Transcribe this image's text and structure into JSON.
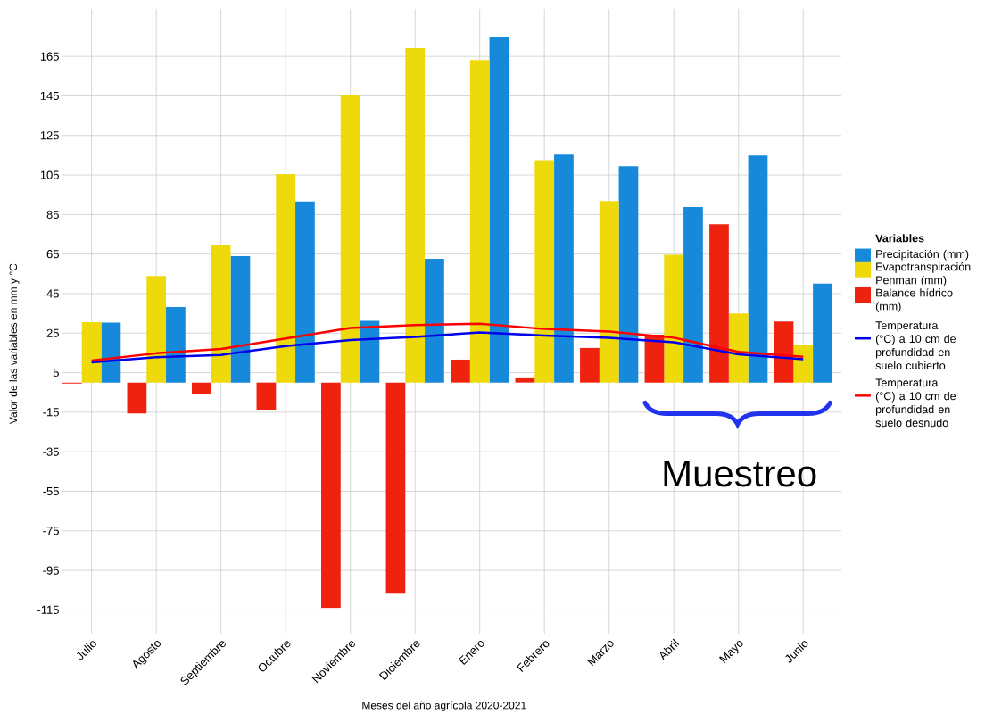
{
  "chart_data": {
    "type": "bar",
    "xlabel": "Meses del año agrícola 2020-2021",
    "ylabel": "Valor de las variables en mm y °C",
    "legend_title": "Variables",
    "legend": "right",
    "grid": true,
    "categories": [
      "Julio",
      "Agosto",
      "Septiembre",
      "Octubre",
      "Noviembre",
      "Diciembre",
      "Enero",
      "Febrero",
      "Marzo",
      "Abril",
      "Mayo",
      "Junio"
    ],
    "ylim": [
      -127,
      189
    ],
    "yticks": [
      -115,
      -95,
      -75,
      -55,
      -35,
      -15,
      5,
      25,
      45,
      65,
      85,
      105,
      125,
      145,
      165
    ],
    "series": [
      {
        "name": "Precipitación (mm)",
        "color": "#1689db",
        "values": [
          30.3,
          38.2,
          63.9,
          91.6,
          31.2,
          62.6,
          174.7,
          115.3,
          109.4,
          88.8,
          114.8,
          50.1
        ]
      },
      {
        "name": "Evapotranspiración Penman (mm)",
        "color": "#eed90b",
        "values": [
          30.5,
          53.9,
          69.8,
          105.5,
          145.2,
          169.1,
          163.1,
          112.5,
          91.8,
          64.6,
          34.9,
          19.3
        ]
      },
      {
        "name": "Balance hídrico (mm)",
        "color": "#ef220f",
        "values": [
          -0.5,
          -15.6,
          -5.8,
          -13.7,
          -114,
          -106.3,
          11.6,
          2.6,
          17.5,
          24.2,
          80.1,
          30.9
        ]
      },
      {
        "name": "Temperatura (°C) a 10 cm de profundidad en suelo cubierto",
        "color": "#0000ee",
        "type": "line",
        "values": [
          10.2,
          12.8,
          14.0,
          18.5,
          21.5,
          23.1,
          25.3,
          23.8,
          22.6,
          20.4,
          14.3,
          11.8
        ]
      },
      {
        "name": "Temperatura (°C) a 10 cm de profundidad en suelo desnudo",
        "color": "#ff0000",
        "type": "line",
        "values": [
          11.1,
          14.8,
          17.0,
          22.3,
          27.6,
          29.1,
          29.8,
          27.1,
          25.8,
          22.7,
          15.5,
          13.0
        ]
      }
    ],
    "annotations": [
      "Muestreo"
    ]
  }
}
